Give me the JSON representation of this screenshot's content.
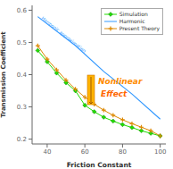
{
  "chart_data": {
    "type": "line",
    "xlabel": "Friction Constant",
    "ylabel": "Transmission Coefficient",
    "xlim": [
      32,
      103
    ],
    "ylim": [
      0.185,
      0.615
    ],
    "xticks": [
      40,
      60,
      80,
      100
    ],
    "yticks": [
      0.2,
      0.3,
      0.4,
      0.5,
      0.6
    ],
    "grid": false,
    "legend": "upper right",
    "series": [
      {
        "name": "Simulation",
        "color": "#22dd00",
        "marker": "diamond",
        "x": [
          35,
          40,
          45,
          50,
          55,
          60,
          65,
          70,
          75,
          80,
          85,
          90,
          95,
          100
        ],
        "values": [
          0.475,
          0.44,
          0.405,
          0.375,
          0.35,
          0.305,
          0.285,
          0.268,
          0.256,
          0.245,
          0.236,
          0.226,
          0.218,
          0.21
        ]
      },
      {
        "name": "Harmonic",
        "color": "#3399ff",
        "marker": "none",
        "x": [
          35,
          55,
          70,
          85,
          100
        ],
        "values": [
          0.58,
          0.49,
          0.41,
          0.34,
          0.262
        ]
      },
      {
        "name": "Present Theory",
        "color": "#dd8800",
        "marker": "plus",
        "x": [
          35,
          40,
          45,
          50,
          55,
          60,
          65,
          70,
          75,
          80,
          85,
          90,
          95,
          100
        ],
        "values": [
          0.49,
          0.448,
          0.415,
          0.383,
          0.355,
          0.33,
          0.308,
          0.29,
          0.274,
          0.26,
          0.248,
          0.237,
          0.226,
          0.21
        ]
      }
    ],
    "annotations": [
      {
        "text": "Nonlinear",
        "color": "#FF8C00"
      },
      {
        "text": "Effect",
        "color": "#FF6600"
      },
      {
        "text": "Harmonic approximation",
        "color": "#3399ff"
      }
    ]
  }
}
